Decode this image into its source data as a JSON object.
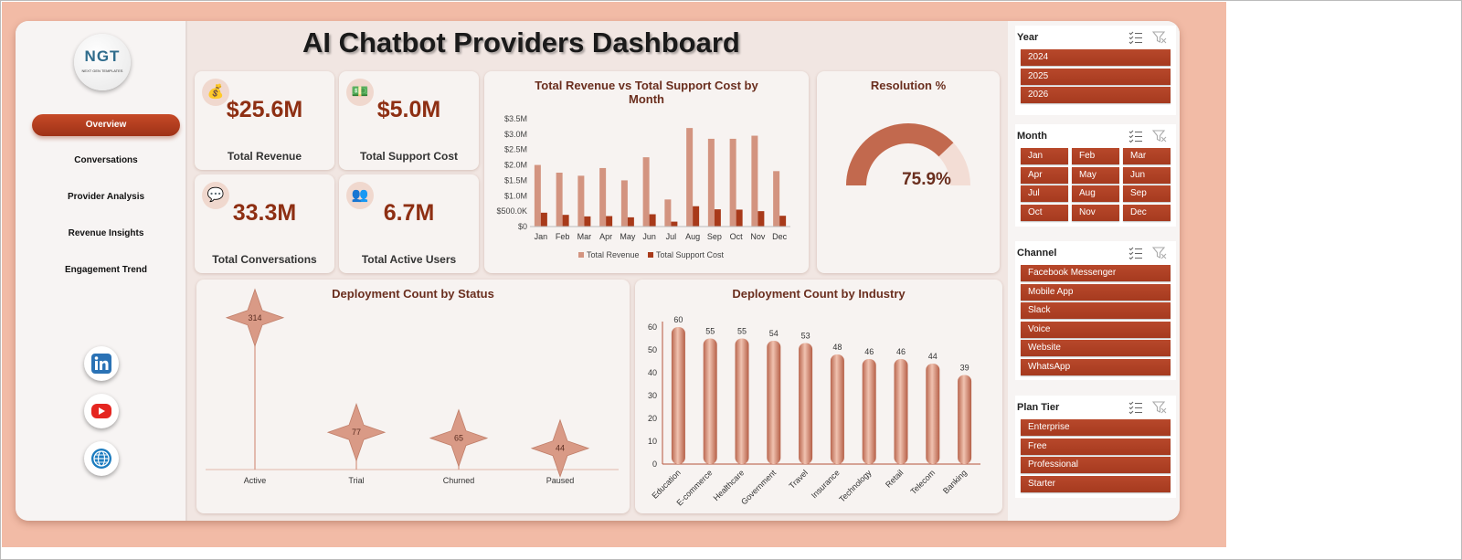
{
  "title": "AI Chatbot Providers Dashboard",
  "logo": {
    "text": "NGT",
    "subtitle": "NEXT GEN TEMPLATES"
  },
  "nav": [
    "Overview",
    "Conversations",
    "Provider Analysis",
    "Revenue Insights",
    "Engagement Trend"
  ],
  "social": [
    {
      "icon": "linkedin-icon",
      "color": "#2a72b5"
    },
    {
      "icon": "youtube-icon",
      "color": "#e52620"
    },
    {
      "icon": "globe-icon",
      "color": "#1b7bbf"
    }
  ],
  "kpis": [
    {
      "value": "$25.6M",
      "label": "Total Revenue",
      "icon": "money-bag-icon"
    },
    {
      "value": "$5.0M",
      "label": "Total Support Cost",
      "icon": "cash-icon"
    },
    {
      "value": "33.3M",
      "label": "Total Conversations",
      "icon": "chat-bubble-icon"
    },
    {
      "value": "6.7M",
      "label": "Total Active Users",
      "icon": "users-icon"
    }
  ],
  "colors": {
    "accent": "#a63a1f",
    "revenue": "#d39480",
    "cost": "#a83a1a",
    "gauge": "#c2694e",
    "gauge_track": "#f3ddd5"
  },
  "chart_data": [
    {
      "type": "bar",
      "title": "Total Revenue vs Total Support Cost by Month",
      "categories": [
        "Jan",
        "Feb",
        "Mar",
        "Apr",
        "May",
        "Jun",
        "Jul",
        "Aug",
        "Sep",
        "Oct",
        "Nov",
        "Dec"
      ],
      "series": [
        {
          "name": "Total Revenue",
          "values": [
            2.0,
            1.75,
            1.65,
            1.9,
            1.5,
            2.25,
            0.88,
            3.2,
            2.85,
            2.85,
            2.95,
            1.8
          ]
        },
        {
          "name": "Total Support Cost",
          "values": [
            0.45,
            0.38,
            0.33,
            0.34,
            0.3,
            0.4,
            0.16,
            0.66,
            0.56,
            0.55,
            0.5,
            0.35
          ]
        }
      ],
      "y_ticks": [
        "$0",
        "$500.0K",
        "$1.0M",
        "$1.5M",
        "$2.0M",
        "$2.5M",
        "$3.0M",
        "$3.5M"
      ],
      "ylim": [
        0,
        3.5
      ],
      "legend": "bottom"
    },
    {
      "type": "gauge",
      "title": "Resolution %",
      "value": 75.9,
      "label": "75.9%"
    },
    {
      "type": "scatter",
      "title": "Deployment Count by Status",
      "categories": [
        "Active",
        "Trial",
        "Churned",
        "Paused"
      ],
      "values": [
        314,
        77,
        65,
        44
      ],
      "data_labels": [
        "314",
        "77",
        "65",
        "44"
      ],
      "ylim": [
        0,
        340
      ]
    },
    {
      "type": "bar",
      "title": "Deployment Count by Industry",
      "categories": [
        "Education",
        "E-commerce",
        "Healthcare",
        "Government",
        "Travel",
        "Insurance",
        "Technology",
        "Retail",
        "Telecom",
        "Banking"
      ],
      "values": [
        60,
        55,
        55,
        54,
        53,
        48,
        46,
        46,
        44,
        39
      ],
      "data_labels": [
        "60",
        "55",
        "55",
        "54",
        "53",
        "48",
        "46",
        "46",
        "44",
        "39"
      ],
      "y_ticks": [
        "0",
        "10",
        "20",
        "30",
        "40",
        "50",
        "60"
      ],
      "ylim": [
        0,
        60
      ]
    }
  ],
  "slicers": [
    {
      "title": "Year",
      "columns": 1,
      "items": [
        "2024",
        "2025",
        "2026"
      ]
    },
    {
      "title": "Month",
      "columns": 3,
      "items": [
        "Jan",
        "Feb",
        "Mar",
        "Apr",
        "May",
        "Jun",
        "Jul",
        "Aug",
        "Sep",
        "Oct",
        "Nov",
        "Dec"
      ]
    },
    {
      "title": "Channel",
      "columns": 1,
      "items": [
        "Facebook Messenger",
        "Mobile App",
        "Slack",
        "Voice",
        "Website",
        "WhatsApp"
      ]
    },
    {
      "title": "Plan Tier",
      "columns": 1,
      "items": [
        "Enterprise",
        "Free",
        "Professional",
        "Starter"
      ]
    }
  ]
}
